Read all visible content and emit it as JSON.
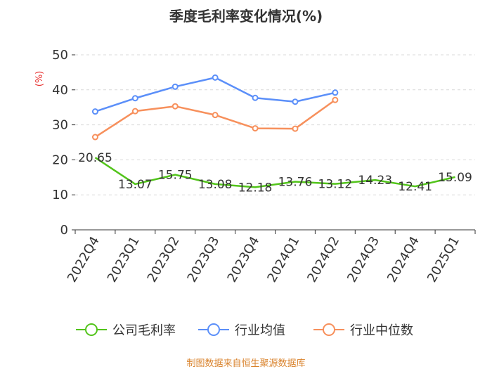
{
  "chart_data": {
    "type": "line",
    "title": "季度毛利率变化情况(%)",
    "ylabel": "(%)",
    "xlabel": "",
    "categories": [
      "2022Q4",
      "2023Q1",
      "2023Q2",
      "2023Q3",
      "2023Q4",
      "2024Q1",
      "2024Q2",
      "2024Q3",
      "2024Q4",
      "2025Q1"
    ],
    "ylim": [
      0,
      50
    ],
    "yticks": [
      0,
      10,
      20,
      30,
      40,
      50
    ],
    "grid": true,
    "legend_position": "bottom",
    "series": [
      {
        "name": "公司毛利率",
        "color": "#52c41a",
        "values": [
          20.65,
          13.07,
          15.75,
          13.08,
          12.18,
          13.76,
          13.12,
          14.23,
          12.41,
          15.09
        ],
        "labels": [
          "20.65",
          "13.07",
          "15.75",
          "13.08",
          "12.18",
          "13.76",
          "13.12",
          "14.23",
          "12.41",
          "15.09"
        ],
        "markers": false
      },
      {
        "name": "行业均值",
        "color": "#5b8ff9",
        "values": [
          33.8,
          37.6,
          40.9,
          43.5,
          37.7,
          36.6,
          39.2,
          null,
          null,
          null
        ],
        "markers": true
      },
      {
        "name": "行业中位数",
        "color": "#f7905c",
        "values": [
          26.5,
          33.9,
          35.3,
          32.8,
          29.0,
          28.9,
          37.1,
          null,
          null,
          null
        ],
        "markers": true
      }
    ],
    "source": "制图数据来自恒生聚源数据库"
  }
}
